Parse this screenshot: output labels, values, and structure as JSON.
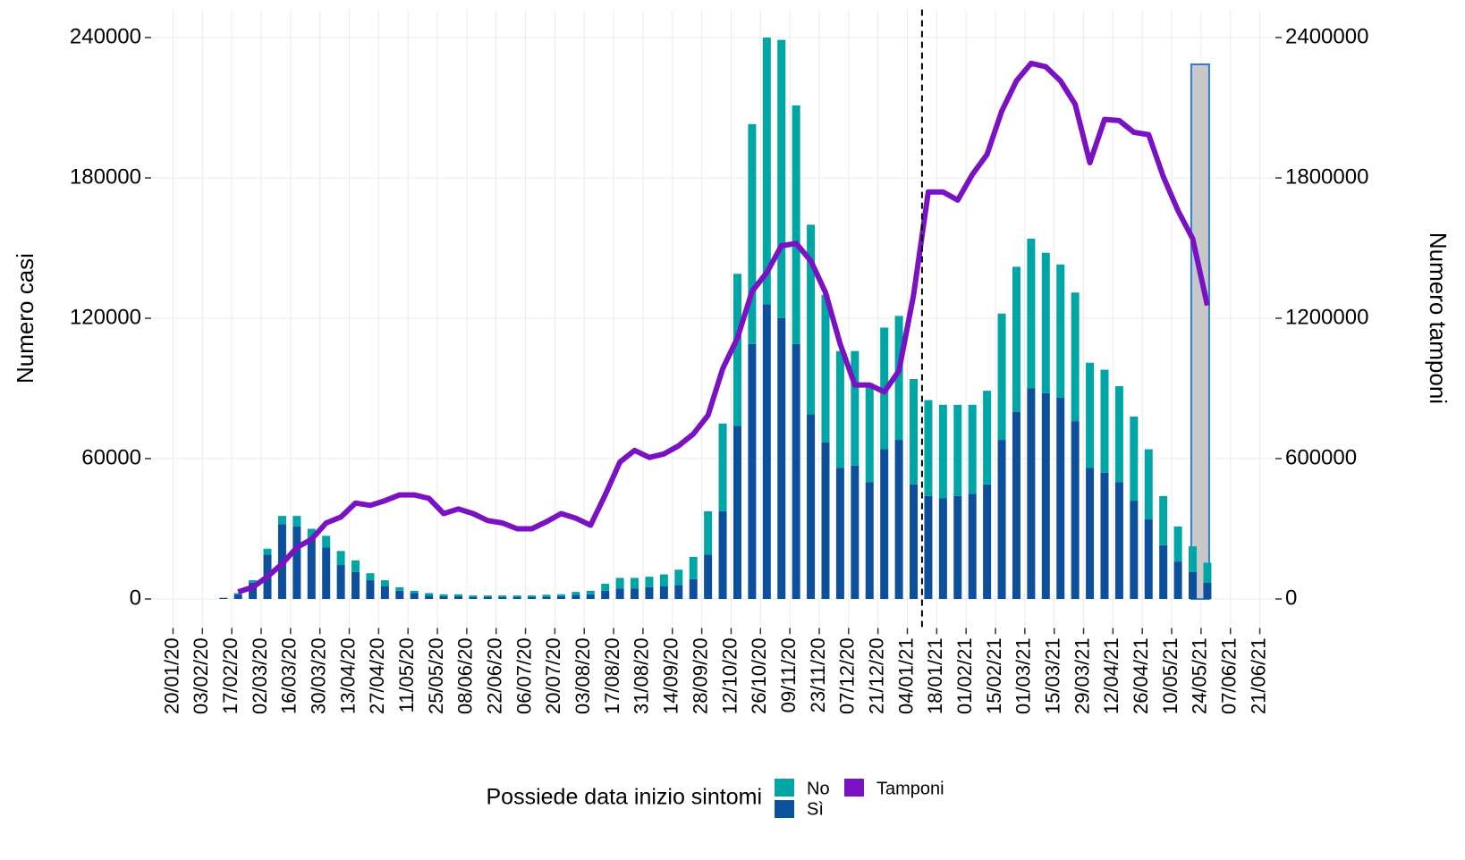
{
  "chart_data": {
    "type": "bar_line",
    "y_label": "Numero casi",
    "y2_label": "Numero tamponi",
    "legend_title": "Possiede data inizio sintomi",
    "legend": "bottom",
    "grid": true,
    "x": [
      "2020-02-13",
      "2020-02-20",
      "2020-02-27",
      "2020-03-05",
      "2020-03-12",
      "2020-03-19",
      "2020-03-26",
      "2020-04-02",
      "2020-04-09",
      "2020-04-16",
      "2020-04-23",
      "2020-04-30",
      "2020-05-07",
      "2020-05-14",
      "2020-05-21",
      "2020-05-28",
      "2020-06-04",
      "2020-06-11",
      "2020-06-18",
      "2020-06-25",
      "2020-07-02",
      "2020-07-09",
      "2020-07-16",
      "2020-07-23",
      "2020-07-30",
      "2020-08-06",
      "2020-08-13",
      "2020-08-20",
      "2020-08-27",
      "2020-09-03",
      "2020-09-10",
      "2020-09-17",
      "2020-09-24",
      "2020-10-01",
      "2020-10-08",
      "2020-10-15",
      "2020-10-22",
      "2020-10-29",
      "2020-11-05",
      "2020-11-12",
      "2020-11-19",
      "2020-11-26",
      "2020-12-03",
      "2020-12-10",
      "2020-12-17",
      "2020-12-24",
      "2020-12-31",
      "2021-01-07",
      "2021-01-14",
      "2021-01-21",
      "2021-01-28",
      "2021-02-04",
      "2021-02-11",
      "2021-02-18",
      "2021-02-25",
      "2021-03-04",
      "2021-03-11",
      "2021-03-18",
      "2021-03-25",
      "2021-04-01",
      "2021-04-08",
      "2021-04-15",
      "2021-04-22",
      "2021-04-29",
      "2021-05-06",
      "2021-05-13",
      "2021-05-20",
      "2021-05-27"
    ],
    "series": [
      {
        "name": "Sì",
        "color": "#0c4f9c",
        "kind": "bar",
        "values": [
          500,
          2000,
          7000,
          19000,
          32000,
          31000,
          26000,
          22000,
          14500,
          11500,
          8000,
          5500,
          3500,
          2500,
          1500,
          1200,
          1200,
          900,
          900,
          900,
          900,
          900,
          1000,
          1200,
          1800,
          2000,
          3500,
          4500,
          4500,
          5000,
          5500,
          6000,
          8500,
          19000,
          37500,
          74000,
          109000,
          126000,
          120000,
          109000,
          79000,
          67000,
          56000,
          57000,
          50000,
          64000,
          68000,
          49000,
          44000,
          43000,
          44000,
          45000,
          49000,
          68000,
          80000,
          90000,
          88000,
          86000,
          76000,
          56000,
          54000,
          50000,
          42000,
          34000,
          23000,
          16000,
          11500,
          7000
        ]
      },
      {
        "name": "No",
        "color": "#00a6a6",
        "kind": "bar",
        "values": [
          0,
          500,
          1000,
          2500,
          3500,
          4500,
          4000,
          5000,
          6000,
          5000,
          3000,
          2500,
          1500,
          1000,
          1000,
          800,
          800,
          600,
          600,
          600,
          600,
          600,
          800,
          800,
          1200,
          1500,
          3000,
          4500,
          4500,
          4500,
          5000,
          6500,
          9500,
          18500,
          37500,
          65000,
          94000,
          114000,
          119000,
          102000,
          81000,
          63000,
          50000,
          49000,
          42000,
          52000,
          53000,
          45000,
          41000,
          40000,
          39000,
          38000,
          40000,
          54000,
          62000,
          64000,
          60000,
          57000,
          55000,
          45000,
          44000,
          41000,
          36000,
          30000,
          21000,
          15000,
          11000,
          8500
        ]
      },
      {
        "name": "Tamponi",
        "color": "#7a12c4",
        "kind": "line",
        "axis": "y2",
        "values": [
          null,
          30000,
          50000,
          95000,
          150000,
          220000,
          255000,
          325000,
          350000,
          410000,
          400000,
          420000,
          445000,
          445000,
          430000,
          365000,
          385000,
          365000,
          335000,
          325000,
          300000,
          300000,
          330000,
          365000,
          345000,
          315000,
          445000,
          585000,
          635000,
          605000,
          620000,
          655000,
          705000,
          785000,
          985000,
          1115000,
          1315000,
          1395000,
          1510000,
          1520000,
          1445000,
          1310000,
          1090000,
          915000,
          915000,
          885000,
          975000,
          1300000,
          1740000,
          1740000,
          1705000,
          1815000,
          1900000,
          2085000,
          2215000,
          2290000,
          2275000,
          2215000,
          2115000,
          1865000,
          2050000,
          2045000,
          1995000,
          1985000,
          1805000,
          1660000,
          1540000,
          1255000
        ]
      }
    ],
    "vline": "2021-01-11",
    "xlim": [
      "2020-01-10",
      "2021-06-28"
    ],
    "xticks": [
      {
        "value": "2020-01-20",
        "label": "20/01/20"
      },
      {
        "value": "2020-02-03",
        "label": "03/02/20"
      },
      {
        "value": "2020-02-17",
        "label": "17/02/20"
      },
      {
        "value": "2020-03-02",
        "label": "02/03/20"
      },
      {
        "value": "2020-03-16",
        "label": "16/03/20"
      },
      {
        "value": "2020-03-30",
        "label": "30/03/20"
      },
      {
        "value": "2020-04-13",
        "label": "13/04/20"
      },
      {
        "value": "2020-04-27",
        "label": "27/04/20"
      },
      {
        "value": "2020-05-11",
        "label": "11/05/20"
      },
      {
        "value": "2020-05-25",
        "label": "25/05/20"
      },
      {
        "value": "2020-06-08",
        "label": "08/06/20"
      },
      {
        "value": "2020-06-22",
        "label": "22/06/20"
      },
      {
        "value": "2020-07-06",
        "label": "06/07/20"
      },
      {
        "value": "2020-07-20",
        "label": "20/07/20"
      },
      {
        "value": "2020-08-03",
        "label": "03/08/20"
      },
      {
        "value": "2020-08-17",
        "label": "17/08/20"
      },
      {
        "value": "2020-08-31",
        "label": "31/08/20"
      },
      {
        "value": "2020-09-14",
        "label": "14/09/20"
      },
      {
        "value": "2020-09-28",
        "label": "28/09/20"
      },
      {
        "value": "2020-10-12",
        "label": "12/10/20"
      },
      {
        "value": "2020-10-26",
        "label": "26/10/20"
      },
      {
        "value": "2020-11-09",
        "label": "09/11/20"
      },
      {
        "value": "2020-11-23",
        "label": "23/11/20"
      },
      {
        "value": "2020-12-07",
        "label": "07/12/20"
      },
      {
        "value": "2020-12-21",
        "label": "21/12/20"
      },
      {
        "value": "2021-01-04",
        "label": "04/01/21"
      },
      {
        "value": "2021-01-18",
        "label": "18/01/21"
      },
      {
        "value": "2021-02-01",
        "label": "01/02/21"
      },
      {
        "value": "2021-02-15",
        "label": "15/02/21"
      },
      {
        "value": "2021-03-01",
        "label": "01/03/21"
      },
      {
        "value": "2021-03-15",
        "label": "15/03/21"
      },
      {
        "value": "2021-03-29",
        "label": "29/03/21"
      },
      {
        "value": "2021-04-12",
        "label": "12/04/21"
      },
      {
        "value": "2021-04-26",
        "label": "26/04/21"
      },
      {
        "value": "2021-05-10",
        "label": "10/05/21"
      },
      {
        "value": "2021-05-24",
        "label": "24/05/21"
      },
      {
        "value": "2021-06-07",
        "label": "07/06/21"
      },
      {
        "value": "2021-06-21",
        "label": "21/06/21"
      }
    ],
    "ylim": [
      -12000,
      252000
    ],
    "yticks": [
      0,
      60000,
      120000,
      180000,
      240000
    ],
    "y2lim": [
      -120000,
      2520000
    ],
    "y2ticks": [
      0,
      600000,
      1200000,
      1800000,
      2400000
    ]
  }
}
